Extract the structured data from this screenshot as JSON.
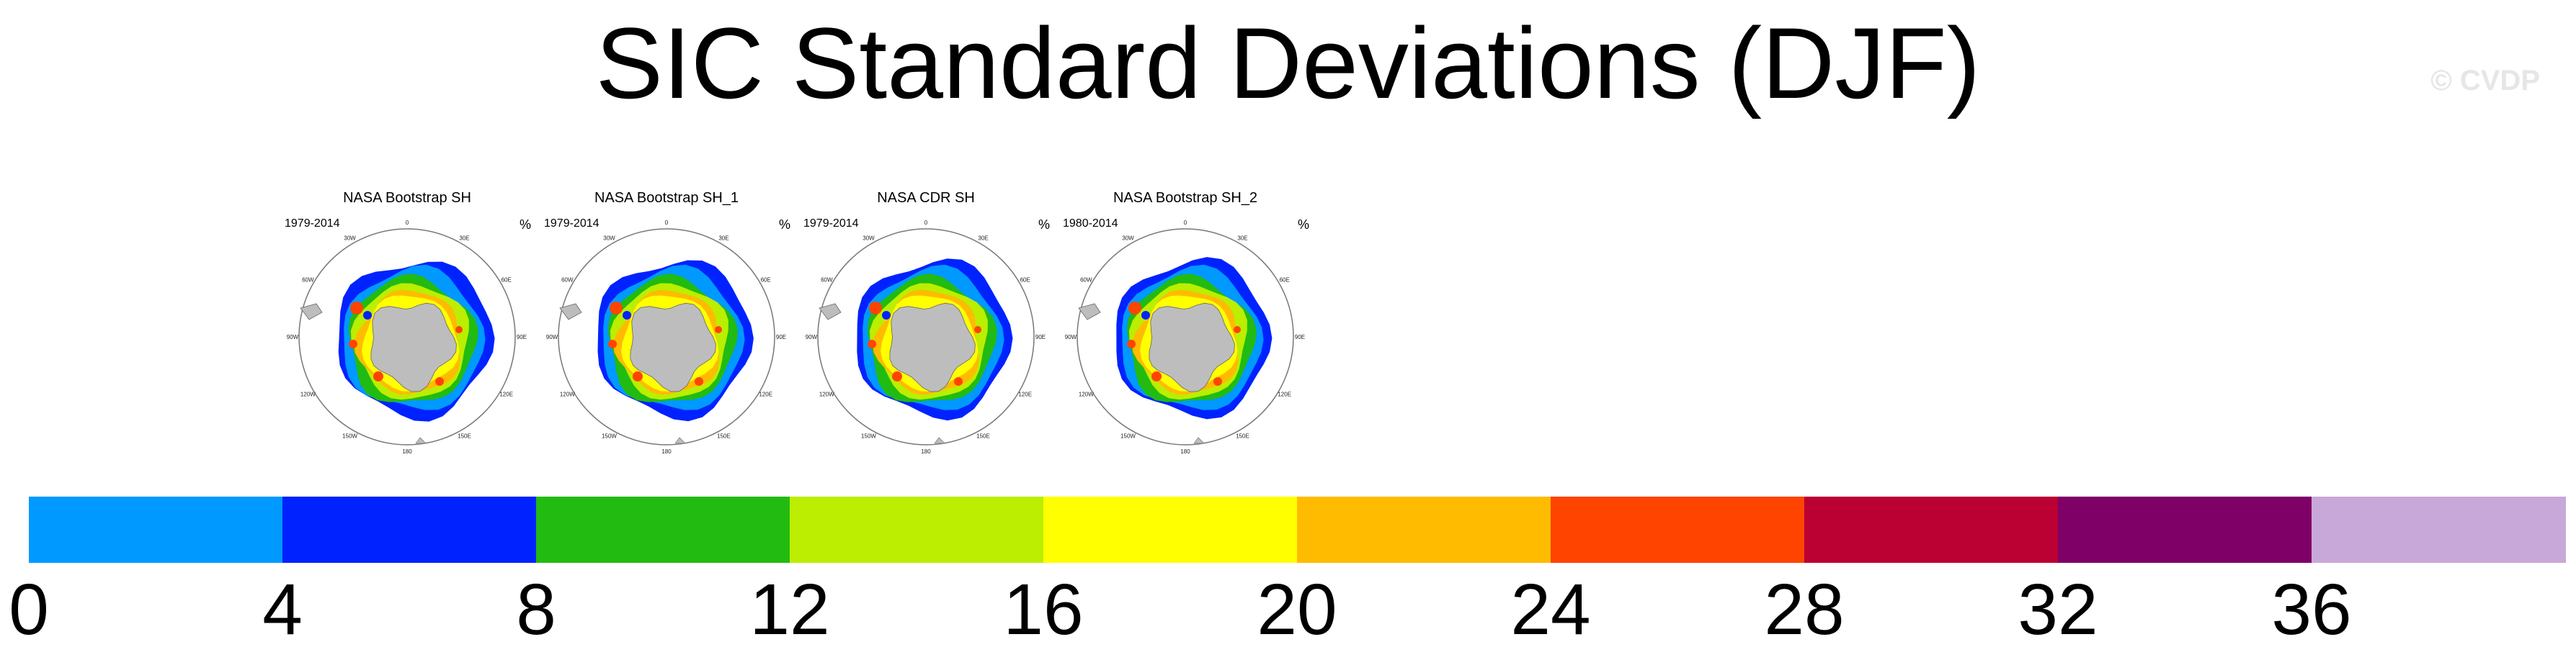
{
  "header": {
    "title": "SIC Standard Deviations (DJF)",
    "watermark": "© CVDP"
  },
  "panels": [
    {
      "title": "NASA Bootstrap SH",
      "years": "1979-2014",
      "unit": "%"
    },
    {
      "title": "NASA Bootstrap SH_1",
      "years": "1979-2014",
      "unit": "%"
    },
    {
      "title": "NASA CDR SH",
      "years": "1979-2014",
      "unit": "%"
    },
    {
      "title": "NASA Bootstrap SH_2",
      "years": "1980-2014",
      "unit": "%"
    }
  ],
  "map": {
    "lon_labels": [
      "0",
      "30E",
      "60E",
      "90E",
      "120E",
      "150E",
      "180",
      "150W",
      "120W",
      "90W",
      "60W",
      "30W"
    ]
  },
  "colorbar": {
    "colors": [
      "#0099ff",
      "#0022ff",
      "#22bb11",
      "#bbee00",
      "#ffff00",
      "#ffbb00",
      "#ff4400",
      "#bb0033",
      "#7f0066",
      "#c8a8d8"
    ],
    "labels": [
      "0",
      "4",
      "8",
      "12",
      "16",
      "20",
      "24",
      "28",
      "32",
      "36"
    ]
  }
}
